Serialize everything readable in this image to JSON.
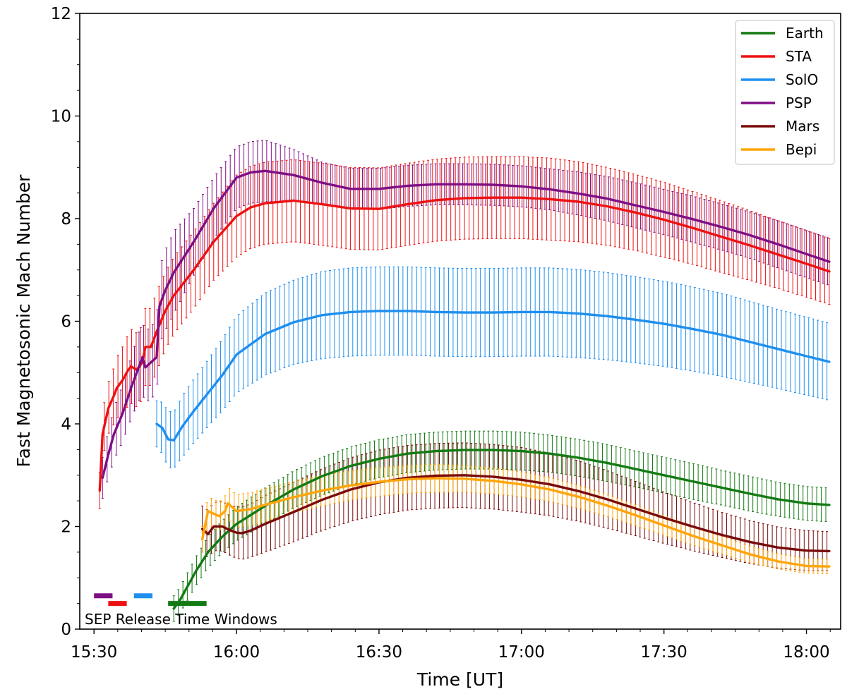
{
  "chart_data": {
    "type": "line",
    "title": "",
    "xlabel": "Time [UT]",
    "ylabel": "Fast Magnetosonic Mach Number",
    "xlim": [
      15.45,
      18.12
    ],
    "ylim": [
      0,
      12
    ],
    "x_ticks": [
      15.5,
      16.0,
      16.5,
      17.0,
      17.5,
      18.0
    ],
    "x_tick_labels": [
      "15:30",
      "16:00",
      "16:30",
      "17:00",
      "17:30",
      "18:00"
    ],
    "y_ticks": [
      0,
      2,
      4,
      6,
      8,
      10,
      12
    ],
    "y_tick_labels": [
      "0",
      "2",
      "4",
      "6",
      "8",
      "10",
      "12"
    ],
    "legend_position": "top-right",
    "annotation": "SEP Release Time Windows",
    "series": [
      {
        "name": "Earth",
        "color": "#137a13",
        "x": [
          15.78,
          15.8,
          15.83,
          15.86,
          15.9,
          15.95,
          16.0,
          16.1,
          16.2,
          16.3,
          16.4,
          16.5,
          16.6,
          16.7,
          16.8,
          16.9,
          17.0,
          17.1,
          17.2,
          17.3,
          17.4,
          17.5,
          17.6,
          17.7,
          17.8,
          17.9,
          18.0,
          18.08
        ],
        "y": [
          0.4,
          0.55,
          0.85,
          1.15,
          1.5,
          1.8,
          2.05,
          2.4,
          2.72,
          2.98,
          3.18,
          3.32,
          3.42,
          3.47,
          3.49,
          3.49,
          3.47,
          3.42,
          3.34,
          3.24,
          3.12,
          3.0,
          2.88,
          2.76,
          2.64,
          2.53,
          2.45,
          2.42
        ],
        "err": [
          0.25,
          0.25,
          0.27,
          0.28,
          0.3,
          0.31,
          0.33,
          0.35,
          0.36,
          0.37,
          0.37,
          0.37,
          0.37,
          0.37,
          0.37,
          0.37,
          0.37,
          0.36,
          0.36,
          0.36,
          0.35,
          0.35,
          0.35,
          0.34,
          0.34,
          0.33,
          0.33,
          0.33
        ]
      },
      {
        "name": "STA",
        "color": "#ee1111",
        "x": [
          15.52,
          15.53,
          15.55,
          15.57,
          15.58,
          15.6,
          15.62,
          15.63,
          15.65,
          15.67,
          15.68,
          15.7,
          15.72,
          15.75,
          15.78,
          15.85,
          15.92,
          16.0,
          16.05,
          16.1,
          16.2,
          16.3,
          16.4,
          16.5,
          16.6,
          16.7,
          16.8,
          16.9,
          17.0,
          17.1,
          17.2,
          17.3,
          17.4,
          17.5,
          17.6,
          17.7,
          17.8,
          17.9,
          18.0,
          18.08
        ],
        "y": [
          2.7,
          3.8,
          4.3,
          4.55,
          4.7,
          4.85,
          5.05,
          5.12,
          5.05,
          5.2,
          5.5,
          5.5,
          5.8,
          6.2,
          6.5,
          7.0,
          7.55,
          8.05,
          8.22,
          8.3,
          8.35,
          8.28,
          8.2,
          8.19,
          8.28,
          8.36,
          8.4,
          8.41,
          8.41,
          8.38,
          8.33,
          8.24,
          8.12,
          7.98,
          7.82,
          7.65,
          7.48,
          7.3,
          7.12,
          6.97
        ],
        "err": [
          0.35,
          0.45,
          0.5,
          0.55,
          0.6,
          0.65,
          0.7,
          0.72,
          0.72,
          0.72,
          0.75,
          0.75,
          0.78,
          0.75,
          0.75,
          0.75,
          0.75,
          0.8,
          0.8,
          0.8,
          0.8,
          0.8,
          0.8,
          0.8,
          0.8,
          0.8,
          0.8,
          0.8,
          0.8,
          0.8,
          0.78,
          0.76,
          0.74,
          0.73,
          0.71,
          0.7,
          0.68,
          0.66,
          0.65,
          0.64
        ]
      },
      {
        "name": "SolO",
        "color": "#1f8fee",
        "x": [
          15.72,
          15.74,
          15.76,
          15.78,
          15.81,
          15.85,
          15.9,
          15.95,
          16.0,
          16.1,
          16.2,
          16.3,
          16.4,
          16.5,
          16.6,
          16.7,
          16.8,
          16.9,
          17.0,
          17.1,
          17.2,
          17.3,
          17.4,
          17.5,
          17.6,
          17.7,
          17.8,
          17.9,
          18.0,
          18.08
        ],
        "y": [
          4.0,
          3.92,
          3.7,
          3.68,
          3.95,
          4.25,
          4.6,
          4.95,
          5.35,
          5.75,
          5.98,
          6.12,
          6.18,
          6.2,
          6.2,
          6.18,
          6.17,
          6.17,
          6.18,
          6.18,
          6.15,
          6.1,
          6.03,
          5.95,
          5.85,
          5.74,
          5.6,
          5.46,
          5.32,
          5.21
        ],
        "err": [
          0.45,
          0.5,
          0.55,
          0.55,
          0.6,
          0.62,
          0.65,
          0.7,
          0.75,
          0.8,
          0.82,
          0.85,
          0.86,
          0.86,
          0.86,
          0.86,
          0.86,
          0.86,
          0.86,
          0.86,
          0.86,
          0.85,
          0.84,
          0.83,
          0.82,
          0.81,
          0.79,
          0.77,
          0.76,
          0.75
        ]
      },
      {
        "name": "PSP",
        "color": "#7f0f85",
        "x": [
          15.53,
          15.55,
          15.57,
          15.6,
          15.63,
          15.65,
          15.67,
          15.68,
          15.7,
          15.72,
          15.73,
          15.75,
          15.78,
          15.85,
          15.92,
          16.0,
          16.05,
          16.1,
          16.2,
          16.3,
          16.4,
          16.5,
          16.6,
          16.7,
          16.8,
          16.9,
          17.0,
          17.1,
          17.2,
          17.3,
          17.4,
          17.5,
          17.6,
          17.7,
          17.8,
          17.9,
          18.0,
          18.08
        ],
        "y": [
          2.95,
          3.4,
          3.8,
          4.2,
          4.7,
          5.0,
          5.3,
          5.1,
          5.2,
          5.3,
          6.3,
          6.6,
          6.95,
          7.55,
          8.2,
          8.8,
          8.9,
          8.93,
          8.85,
          8.7,
          8.58,
          8.58,
          8.64,
          8.67,
          8.67,
          8.66,
          8.63,
          8.57,
          8.49,
          8.39,
          8.26,
          8.13,
          7.99,
          7.84,
          7.68,
          7.5,
          7.31,
          7.16
        ],
        "err": [
          0.4,
          0.45,
          0.5,
          0.55,
          0.6,
          0.65,
          0.7,
          0.7,
          0.7,
          0.72,
          0.75,
          0.78,
          0.8,
          0.65,
          0.6,
          0.6,
          0.6,
          0.6,
          0.5,
          0.4,
          0.4,
          0.4,
          0.4,
          0.4,
          0.4,
          0.4,
          0.4,
          0.4,
          0.42,
          0.43,
          0.44,
          0.44,
          0.45,
          0.45,
          0.45,
          0.46,
          0.46,
          0.46
        ]
      },
      {
        "name": "Mars",
        "color": "#7a0a0a",
        "x": [
          15.88,
          15.9,
          15.92,
          15.95,
          15.98,
          16.0,
          16.02,
          16.05,
          16.1,
          16.2,
          16.3,
          16.4,
          16.5,
          16.6,
          16.7,
          16.8,
          16.9,
          17.0,
          17.1,
          17.2,
          17.3,
          17.4,
          17.5,
          17.6,
          17.7,
          17.8,
          17.9,
          18.0,
          18.08
        ],
        "y": [
          1.95,
          1.85,
          2.0,
          2.0,
          1.92,
          1.88,
          1.87,
          1.92,
          2.05,
          2.28,
          2.52,
          2.72,
          2.86,
          2.95,
          2.99,
          3.0,
          2.97,
          2.91,
          2.82,
          2.69,
          2.53,
          2.35,
          2.17,
          2.0,
          1.84,
          1.7,
          1.59,
          1.53,
          1.52
        ],
        "err": [
          0.45,
          0.46,
          0.47,
          0.48,
          0.49,
          0.5,
          0.51,
          0.52,
          0.55,
          0.58,
          0.6,
          0.62,
          0.63,
          0.63,
          0.63,
          0.63,
          0.63,
          0.63,
          0.61,
          0.59,
          0.56,
          0.53,
          0.5,
          0.47,
          0.44,
          0.42,
          0.4,
          0.39,
          0.38
        ]
      },
      {
        "name": "Bepi",
        "color": "#ffa50a",
        "x": [
          15.88,
          15.9,
          15.92,
          15.94,
          15.96,
          15.97,
          15.99,
          16.0,
          16.05,
          16.1,
          16.2,
          16.3,
          16.4,
          16.5,
          16.6,
          16.7,
          16.8,
          16.9,
          17.0,
          17.1,
          17.2,
          17.3,
          17.4,
          17.5,
          17.6,
          17.7,
          17.8,
          17.9,
          18.0,
          18.08
        ],
        "y": [
          1.75,
          2.3,
          2.25,
          2.2,
          2.3,
          2.45,
          2.35,
          2.3,
          2.34,
          2.42,
          2.57,
          2.7,
          2.8,
          2.87,
          2.92,
          2.94,
          2.93,
          2.89,
          2.82,
          2.72,
          2.58,
          2.41,
          2.22,
          2.02,
          1.82,
          1.64,
          1.46,
          1.32,
          1.23,
          1.22
        ],
        "err": [
          0.25,
          0.28,
          0.28,
          0.28,
          0.3,
          0.32,
          0.32,
          0.32,
          0.32,
          0.32,
          0.3,
          0.3,
          0.28,
          0.28,
          0.27,
          0.27,
          0.26,
          0.25,
          0.24,
          0.23,
          0.22,
          0.21,
          0.2,
          0.19,
          0.18,
          0.17,
          0.16,
          0.15,
          0.14,
          0.14
        ]
      }
    ],
    "release_windows": [
      {
        "name": "PSP",
        "color": "#7f0f85",
        "start": 15.5,
        "end": 15.565,
        "level": 0.65
      },
      {
        "name": "STA",
        "color": "#ee1111",
        "start": 15.55,
        "end": 15.615,
        "level": 0.5
      },
      {
        "name": "SolO",
        "color": "#1f8fee",
        "start": 15.64,
        "end": 15.705,
        "level": 0.65
      },
      {
        "name": "Earth",
        "color": "#137a13",
        "start": 15.76,
        "end": 15.895,
        "level": 0.5
      }
    ]
  }
}
